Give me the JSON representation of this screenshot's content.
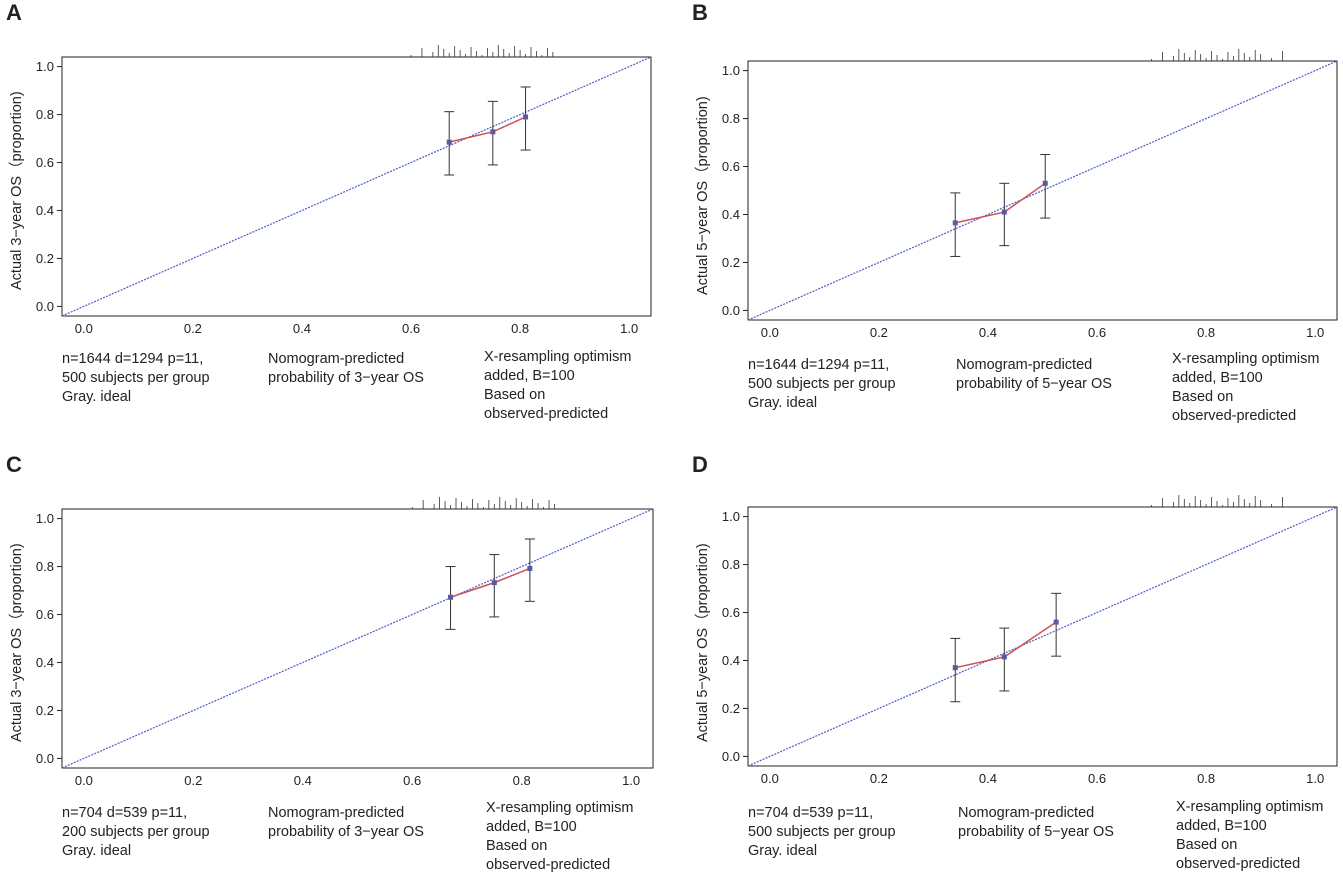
{
  "colors": {
    "ideal": "#4a5cc7",
    "apparent": "#d05050",
    "point": "#5a5aa0",
    "frame": "#222222"
  },
  "panels": [
    {
      "letter": "A",
      "ylabel": "Actual 3−year OS（proportion)",
      "note_left": [
        "n=1644 d=1294 p=11,",
        "500 subjects per group",
        "Gray. ideal"
      ],
      "note_mid": [
        "Nomogram-predicted",
        "probability of 3−year OS"
      ],
      "note_right": [
        "X-resampling optimism",
        "added, B=100",
        "Based on",
        "observed-predicted"
      ]
    },
    {
      "letter": "B",
      "ylabel": "Actual 5−year OS（proportion)",
      "note_left": [
        "n=1644 d=1294 p=11,",
        "500 subjects per group",
        "Gray. ideal"
      ],
      "note_mid": [
        "Nomogram-predicted",
        "probability of 5−year OS"
      ],
      "note_right": [
        "X-resampling optimism",
        "added, B=100",
        "Based on",
        "observed-predicted"
      ]
    },
    {
      "letter": "C",
      "ylabel": "Actual 3−year OS（proportion)",
      "note_left": [
        "n=704 d=539 p=11,",
        "200 subjects per group",
        "Gray. ideal"
      ],
      "note_mid": [
        "Nomogram-predicted",
        "probability of 3−year OS"
      ],
      "note_right": [
        "X-resampling optimism",
        "added, B=100",
        "Based on",
        "observed-predicted"
      ]
    },
    {
      "letter": "D",
      "ylabel": "Actual 5−year OS（proportion)",
      "note_left": [
        "n=704 d=539 p=11,",
        "500 subjects per group",
        "Gray. ideal"
      ],
      "note_mid": [
        "Nomogram-predicted",
        "probability of 5−year OS"
      ],
      "note_right": [
        "X-resampling optimism",
        "added, B=100",
        "Based on",
        "observed-predicted"
      ]
    }
  ],
  "chart_data": [
    {
      "type": "line",
      "title": "A",
      "xlabel": "Nomogram-predicted probability of 3−year OS",
      "ylabel": "Actual 3−year OS（proportion)",
      "xlim": [
        -0.04,
        1.04
      ],
      "ylim": [
        -0.04,
        1.04
      ],
      "xticks": [
        "0.0",
        "0.2",
        "0.4",
        "0.6",
        "0.8",
        "1.0"
      ],
      "yticks": [
        "0.0",
        "0.2",
        "0.4",
        "0.6",
        "0.8",
        "1.0"
      ],
      "ideal_line": [
        [
          -0.04,
          -0.04
        ],
        [
          1.04,
          1.04
        ]
      ],
      "series": [
        {
          "name": "observed",
          "x": [
            0.67,
            0.75,
            0.81
          ],
          "y": [
            0.685,
            0.728,
            0.79
          ],
          "ci_low": [
            0.548,
            0.59,
            0.652
          ],
          "ci_high": [
            0.812,
            0.855,
            0.915
          ]
        }
      ],
      "rug": [
        0.6,
        0.62,
        0.64,
        0.65,
        0.66,
        0.67,
        0.68,
        0.69,
        0.7,
        0.71,
        0.72,
        0.73,
        0.74,
        0.75,
        0.76,
        0.77,
        0.78,
        0.79,
        0.8,
        0.81,
        0.82,
        0.83,
        0.84,
        0.85,
        0.86
      ]
    },
    {
      "type": "line",
      "title": "B",
      "xlabel": "Nomogram-predicted probability of 5−year OS",
      "ylabel": "Actual 5−year OS（proportion)",
      "xlim": [
        -0.04,
        1.04
      ],
      "ylim": [
        -0.04,
        1.04
      ],
      "xticks": [
        "0.0",
        "0.2",
        "0.4",
        "0.6",
        "0.8",
        "1.0"
      ],
      "yticks": [
        "0.0",
        "0.2",
        "0.4",
        "0.6",
        "0.8",
        "1.0"
      ],
      "ideal_line": [
        [
          -0.04,
          -0.04
        ],
        [
          1.04,
          1.04
        ]
      ],
      "series": [
        {
          "name": "observed",
          "x": [
            0.34,
            0.43,
            0.505
          ],
          "y": [
            0.365,
            0.41,
            0.53
          ],
          "ci_low": [
            0.225,
            0.27,
            0.385
          ],
          "ci_high": [
            0.49,
            0.53,
            0.65
          ]
        }
      ],
      "rug": [
        0.7,
        0.72,
        0.74,
        0.75,
        0.76,
        0.77,
        0.78,
        0.79,
        0.8,
        0.81,
        0.82,
        0.83,
        0.84,
        0.85,
        0.86,
        0.87,
        0.88,
        0.89,
        0.9,
        0.92,
        0.94
      ]
    },
    {
      "type": "line",
      "title": "C",
      "xlabel": "Nomogram-predicted probability of 3−year OS",
      "ylabel": "Actual 3−year OS（proportion)",
      "xlim": [
        -0.04,
        1.04
      ],
      "ylim": [
        -0.04,
        1.04
      ],
      "xticks": [
        "0.0",
        "0.2",
        "0.4",
        "0.6",
        "0.8",
        "1.0"
      ],
      "yticks": [
        "0.0",
        "0.2",
        "0.4",
        "0.6",
        "0.8",
        "1.0"
      ],
      "ideal_line": [
        [
          -0.04,
          -0.04
        ],
        [
          1.04,
          1.04
        ]
      ],
      "series": [
        {
          "name": "observed",
          "x": [
            0.67,
            0.75,
            0.815
          ],
          "y": [
            0.672,
            0.733,
            0.792
          ],
          "ci_low": [
            0.538,
            0.59,
            0.655
          ],
          "ci_high": [
            0.8,
            0.85,
            0.915
          ]
        }
      ],
      "rug": [
        0.6,
        0.62,
        0.64,
        0.65,
        0.66,
        0.67,
        0.68,
        0.69,
        0.7,
        0.71,
        0.72,
        0.73,
        0.74,
        0.75,
        0.76,
        0.77,
        0.78,
        0.79,
        0.8,
        0.81,
        0.82,
        0.83,
        0.84,
        0.85,
        0.86
      ]
    },
    {
      "type": "line",
      "title": "D",
      "xlabel": "Nomogram-predicted probability of 5−year OS",
      "ylabel": "Actual 5−year OS（proportion)",
      "xlim": [
        -0.04,
        1.04
      ],
      "ylim": [
        -0.04,
        1.04
      ],
      "xticks": [
        "0.0",
        "0.2",
        "0.4",
        "0.6",
        "0.8",
        "1.0"
      ],
      "yticks": [
        "0.0",
        "0.2",
        "0.4",
        "0.6",
        "0.8",
        "1.0"
      ],
      "ideal_line": [
        [
          -0.04,
          -0.04
        ],
        [
          1.04,
          1.04
        ]
      ],
      "series": [
        {
          "name": "observed",
          "x": [
            0.34,
            0.43,
            0.525
          ],
          "y": [
            0.37,
            0.415,
            0.56
          ],
          "ci_low": [
            0.228,
            0.273,
            0.418
          ],
          "ci_high": [
            0.492,
            0.535,
            0.68
          ]
        }
      ],
      "rug": [
        0.7,
        0.72,
        0.74,
        0.75,
        0.76,
        0.77,
        0.78,
        0.79,
        0.8,
        0.81,
        0.82,
        0.83,
        0.84,
        0.85,
        0.86,
        0.87,
        0.88,
        0.89,
        0.9,
        0.92,
        0.94
      ]
    }
  ]
}
